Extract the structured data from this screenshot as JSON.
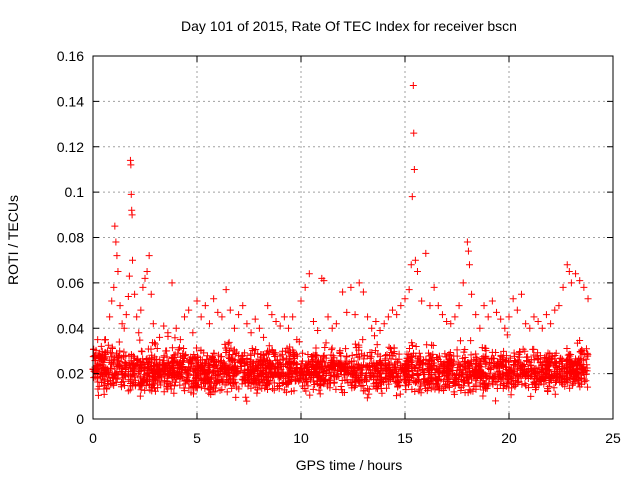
{
  "chart_data": {
    "type": "scatter",
    "title": "Day 101 of 2015, Rate Of TEC Index for receiver bscn",
    "xlabel": "GPS time / hours",
    "ylabel": "ROTI / TECUs",
    "xlim": [
      0,
      25
    ],
    "ylim": [
      0,
      0.16
    ],
    "x_ticks": [
      0,
      5,
      10,
      15,
      20,
      25
    ],
    "x_tick_labels": [
      "0",
      "5",
      "10",
      "15",
      "20",
      "25"
    ],
    "y_ticks": [
      0,
      0.02,
      0.04,
      0.06,
      0.08,
      0.1,
      0.12,
      0.14,
      0.16
    ],
    "y_tick_labels": [
      "0",
      "0.02",
      "0.04",
      "0.06",
      "0.08",
      "0.1",
      "0.12",
      "0.14",
      "0.16"
    ],
    "grid": true,
    "marker": "plus",
    "color": "#ff0000",
    "series": [
      {
        "points": [
          [
            0.05,
            0.021
          ],
          [
            0.1,
            0.028
          ],
          [
            0.2,
            0.018
          ],
          [
            0.3,
            0.024
          ],
          [
            0.4,
            0.032
          ],
          [
            0.5,
            0.026
          ],
          [
            0.6,
            0.035
          ],
          [
            0.7,
            0.03
          ],
          [
            0.8,
            0.045
          ],
          [
            0.9,
            0.052
          ],
          [
            1.0,
            0.058
          ],
          [
            1.05,
            0.085
          ],
          [
            1.1,
            0.078
          ],
          [
            1.15,
            0.072
          ],
          [
            1.2,
            0.065
          ],
          [
            1.3,
            0.05
          ],
          [
            1.4,
            0.042
          ],
          [
            1.5,
            0.04
          ],
          [
            1.6,
            0.046
          ],
          [
            1.7,
            0.054
          ],
          [
            1.75,
            0.063
          ],
          [
            1.8,
            0.114
          ],
          [
            1.82,
            0.112
          ],
          [
            1.84,
            0.099
          ],
          [
            1.86,
            0.092
          ],
          [
            1.88,
            0.09
          ],
          [
            1.9,
            0.07
          ],
          [
            2.0,
            0.055
          ],
          [
            2.1,
            0.045
          ],
          [
            2.2,
            0.038
          ],
          [
            2.3,
            0.048
          ],
          [
            2.4,
            0.058
          ],
          [
            2.5,
            0.062
          ],
          [
            2.6,
            0.065
          ],
          [
            2.7,
            0.072
          ],
          [
            2.8,
            0.055
          ],
          [
            2.9,
            0.042
          ],
          [
            3.0,
            0.033
          ],
          [
            3.2,
            0.036
          ],
          [
            3.4,
            0.041
          ],
          [
            3.6,
            0.038
          ],
          [
            3.8,
            0.06
          ],
          [
            4.0,
            0.04
          ],
          [
            4.2,
            0.035
          ],
          [
            4.4,
            0.045
          ],
          [
            4.6,
            0.048
          ],
          [
            4.8,
            0.038
          ],
          [
            5.0,
            0.052
          ],
          [
            5.2,
            0.045
          ],
          [
            5.4,
            0.05
          ],
          [
            5.6,
            0.042
          ],
          [
            5.8,
            0.053
          ],
          [
            6.0,
            0.047
          ],
          [
            6.2,
            0.045
          ],
          [
            6.4,
            0.057
          ],
          [
            6.6,
            0.048
          ],
          [
            6.8,
            0.04
          ],
          [
            7.0,
            0.046
          ],
          [
            7.2,
            0.05
          ],
          [
            7.4,
            0.042
          ],
          [
            7.6,
            0.038
          ],
          [
            7.8,
            0.044
          ],
          [
            8.0,
            0.04
          ],
          [
            8.2,
            0.036
          ],
          [
            8.4,
            0.05
          ],
          [
            8.6,
            0.046
          ],
          [
            8.8,
            0.043
          ],
          [
            9.0,
            0.041
          ],
          [
            9.2,
            0.045
          ],
          [
            9.4,
            0.04
          ],
          [
            9.6,
            0.045
          ],
          [
            9.8,
            0.035
          ],
          [
            10.0,
            0.052
          ],
          [
            10.2,
            0.058
          ],
          [
            10.4,
            0.064
          ],
          [
            10.6,
            0.043
          ],
          [
            10.8,
            0.039
          ],
          [
            11.0,
            0.062
          ],
          [
            11.1,
            0.061
          ],
          [
            11.3,
            0.045
          ],
          [
            11.5,
            0.04
          ],
          [
            11.7,
            0.042
          ],
          [
            12.0,
            0.056
          ],
          [
            12.2,
            0.047
          ],
          [
            12.4,
            0.058
          ],
          [
            12.6,
            0.046
          ],
          [
            12.8,
            0.06
          ],
          [
            13.0,
            0.056
          ],
          [
            13.2,
            0.045
          ],
          [
            13.4,
            0.04
          ],
          [
            13.6,
            0.043
          ],
          [
            13.8,
            0.039
          ],
          [
            14.0,
            0.042
          ],
          [
            14.2,
            0.045
          ],
          [
            14.4,
            0.048
          ],
          [
            14.6,
            0.046
          ],
          [
            14.8,
            0.05
          ],
          [
            15.0,
            0.053
          ],
          [
            15.2,
            0.057
          ],
          [
            15.3,
            0.068
          ],
          [
            15.35,
            0.098
          ],
          [
            15.4,
            0.147
          ],
          [
            15.42,
            0.126
          ],
          [
            15.45,
            0.11
          ],
          [
            15.5,
            0.07
          ],
          [
            15.6,
            0.065
          ],
          [
            15.8,
            0.052
          ],
          [
            16.0,
            0.073
          ],
          [
            16.2,
            0.05
          ],
          [
            16.4,
            0.058
          ],
          [
            16.6,
            0.05
          ],
          [
            16.8,
            0.046
          ],
          [
            17.0,
            0.043
          ],
          [
            17.2,
            0.042
          ],
          [
            17.4,
            0.045
          ],
          [
            17.6,
            0.05
          ],
          [
            17.8,
            0.06
          ],
          [
            18.0,
            0.078
          ],
          [
            18.05,
            0.074
          ],
          [
            18.1,
            0.068
          ],
          [
            18.2,
            0.055
          ],
          [
            18.4,
            0.046
          ],
          [
            18.6,
            0.04
          ],
          [
            18.8,
            0.05
          ],
          [
            19.0,
            0.045
          ],
          [
            19.2,
            0.052
          ],
          [
            19.4,
            0.047
          ],
          [
            19.6,
            0.044
          ],
          [
            19.8,
            0.04
          ],
          [
            20.0,
            0.045
          ],
          [
            20.2,
            0.053
          ],
          [
            20.4,
            0.048
          ],
          [
            20.6,
            0.055
          ],
          [
            20.8,
            0.042
          ],
          [
            21.0,
            0.04
          ],
          [
            21.2,
            0.045
          ],
          [
            21.4,
            0.043
          ],
          [
            21.6,
            0.04
          ],
          [
            21.8,
            0.046
          ],
          [
            22.0,
            0.042
          ],
          [
            22.2,
            0.048
          ],
          [
            22.4,
            0.05
          ],
          [
            22.6,
            0.058
          ],
          [
            22.8,
            0.068
          ],
          [
            22.9,
            0.065
          ],
          [
            23.0,
            0.06
          ],
          [
            23.2,
            0.064
          ],
          [
            23.4,
            0.061
          ],
          [
            23.6,
            0.058
          ],
          [
            23.8,
            0.053
          ]
        ]
      }
    ],
    "dense_band": {
      "x_range": [
        0.0,
        23.8
      ],
      "y_floor_range": [
        0.006,
        0.012
      ],
      "y_ceiling_range": [
        0.028,
        0.04
      ]
    }
  }
}
